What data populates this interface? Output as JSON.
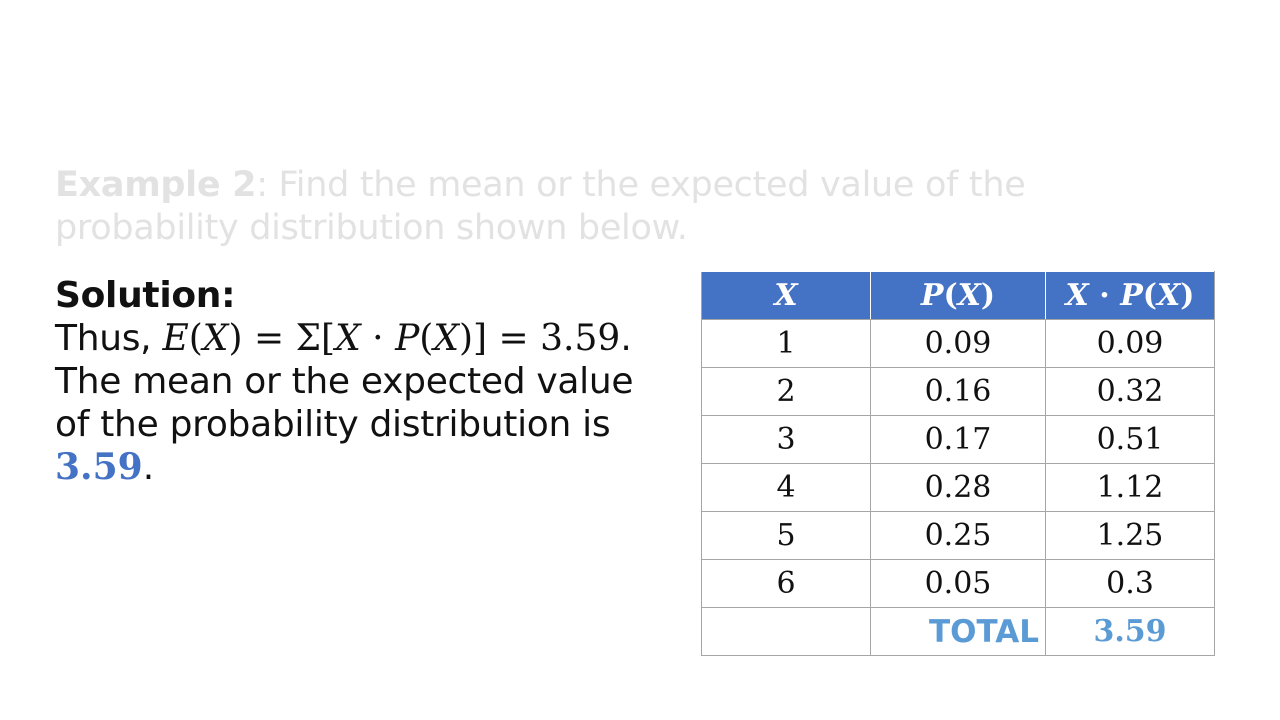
{
  "prompt": {
    "label": "Example 2",
    "text": ": Find the mean or the expected value of the probability distribution shown below."
  },
  "solution": {
    "heading": "Solution:",
    "thus": "Thus, ",
    "formula": {
      "e": "E",
      "x1": "X",
      "sigma": "Σ",
      "x2": "X",
      "dot": "·",
      "p": "P",
      "x3": "X",
      "eq1": "=",
      "eq2": "=",
      "result": "3.59",
      "period": "."
    },
    "sentence": "The mean or the expected value of the probability distribution is ",
    "answer": "3.59",
    "end": "."
  },
  "table": {
    "headers": {
      "x": "X",
      "p": "P",
      "p_arg": "X",
      "xp_x": "X",
      "xp_dot": "·",
      "xp_p": "P",
      "xp_arg": "X"
    },
    "rows": [
      {
        "x": "1",
        "p": "0.09",
        "xp": "0.09"
      },
      {
        "x": "2",
        "p": "0.16",
        "xp": "0.32"
      },
      {
        "x": "3",
        "p": "0.17",
        "xp": "0.51"
      },
      {
        "x": "4",
        "p": "0.28",
        "xp": "1.12"
      },
      {
        "x": "5",
        "p": "0.25",
        "xp": "1.25"
      },
      {
        "x": "6",
        "p": "0.05",
        "xp": "0.3"
      }
    ],
    "total_label": "TOTAL",
    "total_value": "3.59"
  },
  "colors": {
    "header_bg": "#4472c4",
    "answer": "#4472c4",
    "total": "#5b9bd5",
    "prompt_text": "#e2e2e2"
  }
}
